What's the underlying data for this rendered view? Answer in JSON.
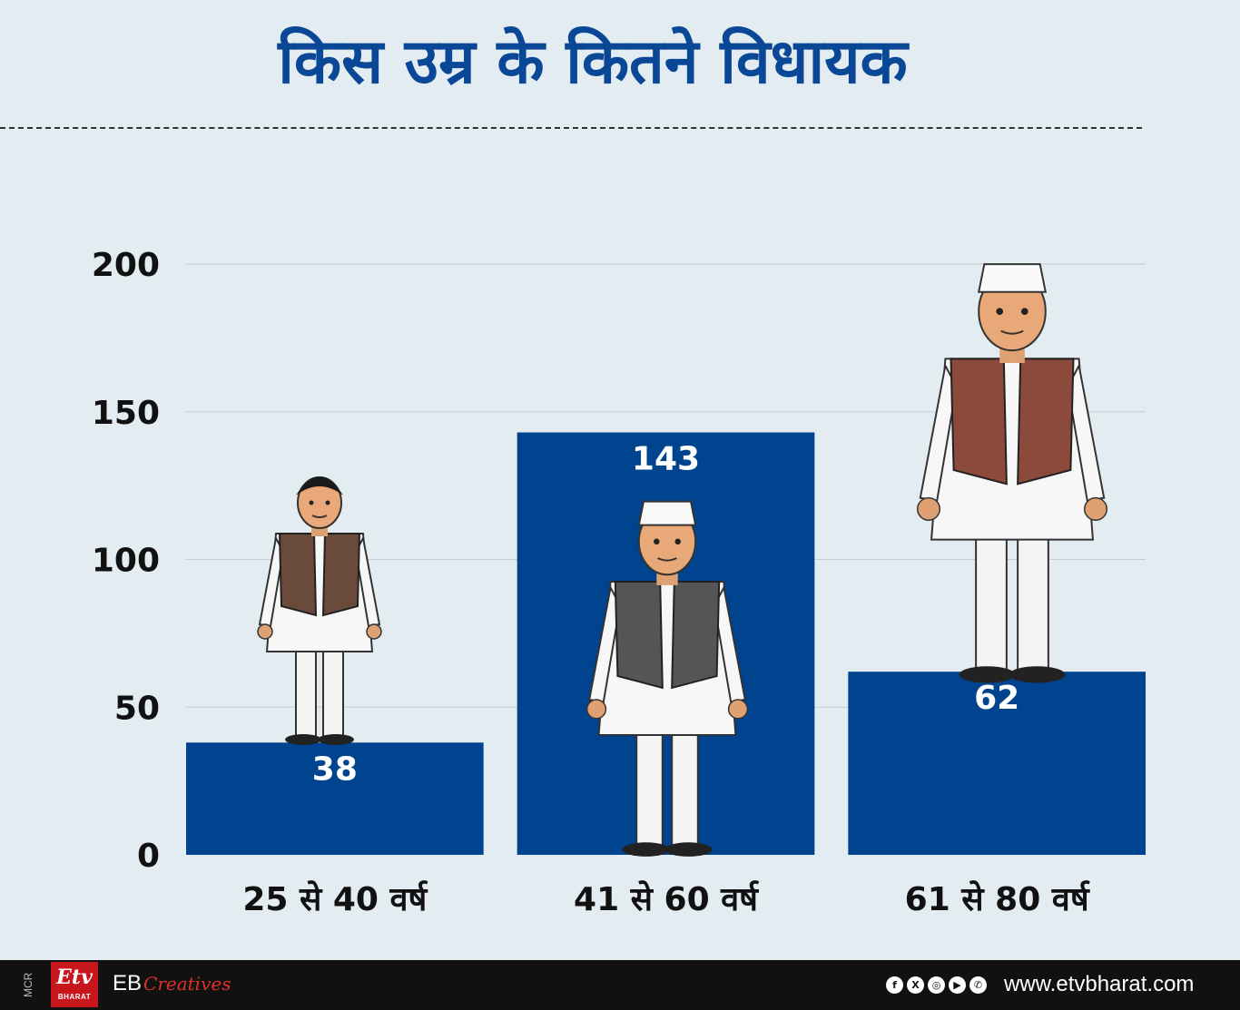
{
  "chart_data": {
    "type": "bar",
    "title": "किस उम्र के कितने विधायक",
    "categories": [
      "25 से 40 वर्ष",
      "41 से 60 वर्ष",
      "61 से 80 वर्ष"
    ],
    "values": [
      38,
      143,
      62
    ],
    "value_labels": [
      "38",
      "143",
      "62"
    ],
    "yticks": [
      "0",
      "50",
      "100",
      "150",
      "200"
    ],
    "ylim": [
      0,
      200
    ],
    "grid": true,
    "bar_color": "#00448f",
    "xlabel": "",
    "ylabel": ""
  },
  "footer": {
    "mcr": "MCR",
    "logo_text": "Etv",
    "logo_sub": "BHARAT",
    "brand_prefix": "EB",
    "brand_script": "Creatives",
    "social_icons": [
      "facebook-icon",
      "x-icon",
      "instagram-icon",
      "youtube-icon",
      "whatsapp-icon"
    ],
    "website": "www.etvbharat.com"
  }
}
